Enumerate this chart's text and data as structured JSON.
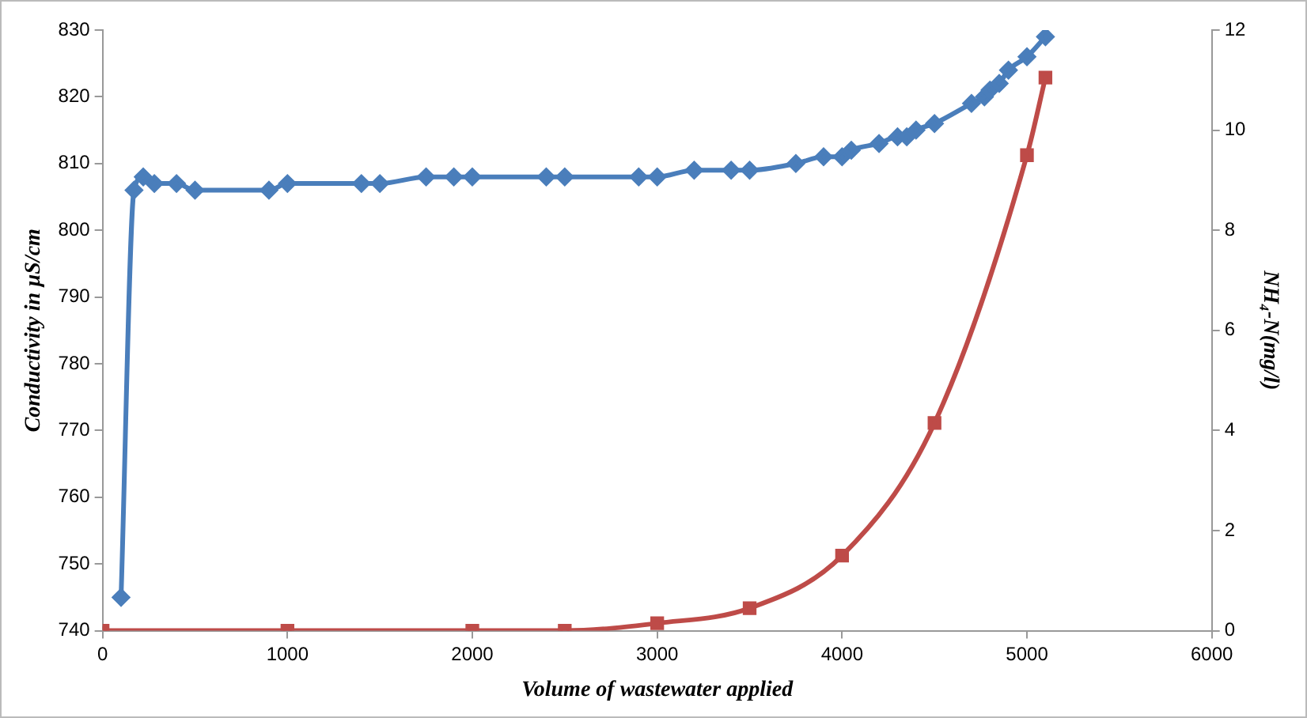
{
  "chart_data": {
    "type": "line",
    "xlabel": "Volume of wastewater applied",
    "ylabel": "Conductivity in µS/cm",
    "y2label": "NH₄-N(mg/l)",
    "xlim": [
      0,
      6000
    ],
    "xticks": [
      0,
      1000,
      2000,
      3000,
      4000,
      5000,
      6000
    ],
    "ylim": [
      740,
      830
    ],
    "yticks": [
      740,
      750,
      760,
      770,
      780,
      790,
      800,
      810,
      820,
      830
    ],
    "y2lim": [
      0,
      12
    ],
    "y2ticks": [
      0,
      2,
      4,
      6,
      8,
      10,
      12
    ],
    "grid": false,
    "legend": false,
    "series": [
      {
        "color": "#4a7ebb",
        "marker": "diamond",
        "x": [
          100,
          170,
          220,
          280,
          400,
          500,
          900,
          1000,
          1400,
          1500,
          1750,
          1900,
          2000,
          2400,
          2500,
          2900,
          3000,
          3200,
          3400,
          3500,
          3750,
          3900,
          4000,
          4050,
          4200,
          4300,
          4350,
          4400,
          4500,
          4700,
          4770,
          4800,
          4850,
          4900,
          5000,
          5100
        ],
        "values": [
          745,
          806,
          808,
          807,
          807,
          806,
          806,
          807,
          807,
          807,
          808,
          808,
          808,
          808,
          808,
          808,
          808,
          809,
          809,
          809,
          810,
          811,
          811,
          812,
          813,
          814,
          814,
          815,
          816,
          819,
          820,
          821,
          822,
          824,
          826,
          829
        ]
      },
      {
        "color": "#be4b48",
        "marker": "square",
        "axis": "y2",
        "x": [
          0,
          1000,
          2000,
          2500,
          3000,
          3500,
          4000,
          4500,
          5000,
          5100
        ],
        "values": [
          0,
          0,
          0,
          0,
          0.15,
          0.45,
          1.5,
          4.15,
          9.5,
          11.05
        ]
      }
    ]
  }
}
